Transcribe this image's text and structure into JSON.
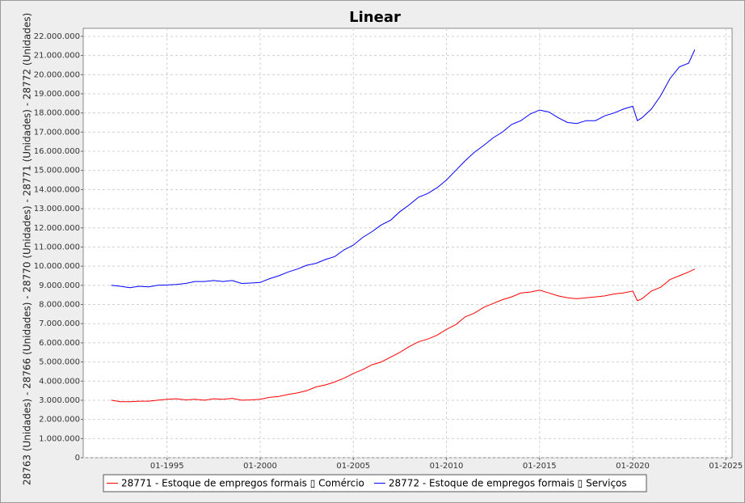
{
  "chart_data": {
    "type": "line",
    "title": "Linear",
    "y_label": "28763 (Unidades) - 28766 (Unidades) - 28770 (Unidades) - 28771 (Unidades) - 28772 (Unidades)",
    "x": [
      "01-1992",
      "07-1992",
      "01-1993",
      "07-1993",
      "01-1994",
      "07-1994",
      "01-1995",
      "07-1995",
      "01-1996",
      "07-1996",
      "01-1997",
      "07-1997",
      "01-1998",
      "07-1998",
      "01-1999",
      "07-1999",
      "01-2000",
      "07-2000",
      "01-2001",
      "07-2001",
      "01-2002",
      "07-2002",
      "01-2003",
      "07-2003",
      "01-2004",
      "07-2004",
      "01-2005",
      "07-2005",
      "01-2006",
      "07-2006",
      "01-2007",
      "07-2007",
      "01-2008",
      "07-2008",
      "01-2009",
      "07-2009",
      "01-2010",
      "07-2010",
      "01-2011",
      "07-2011",
      "01-2012",
      "07-2012",
      "01-2013",
      "07-2013",
      "01-2014",
      "07-2014",
      "01-2015",
      "07-2015",
      "01-2016",
      "07-2016",
      "01-2017",
      "07-2017",
      "01-2018",
      "07-2018",
      "01-2019",
      "07-2019",
      "01-2020",
      "04-2020",
      "07-2020",
      "01-2021",
      "07-2021",
      "01-2022",
      "07-2022",
      "01-2023",
      "05-2023"
    ],
    "series": [
      {
        "name": "28771 - Estoque de empregos formais ▯ Comércio",
        "color": "#ff0000",
        "values": [
          3000000,
          2920000,
          2920000,
          2950000,
          2950000,
          3000000,
          3050000,
          3080000,
          3020000,
          3050000,
          3000000,
          3080000,
          3050000,
          3100000,
          3000000,
          3020000,
          3050000,
          3150000,
          3200000,
          3300000,
          3380000,
          3500000,
          3700000,
          3800000,
          3950000,
          4150000,
          4400000,
          4600000,
          4850000,
          5000000,
          5250000,
          5500000,
          5800000,
          6050000,
          6200000,
          6400000,
          6700000,
          6950000,
          7350000,
          7550000,
          7850000,
          8050000,
          8250000,
          8400000,
          8600000,
          8650000,
          8750000,
          8600000,
          8450000,
          8350000,
          8300000,
          8350000,
          8400000,
          8450000,
          8550000,
          8600000,
          8700000,
          8200000,
          8300000,
          8700000,
          8900000,
          9300000,
          9500000,
          9700000,
          9850000
        ]
      },
      {
        "name": "28772 - Estoque de empregos formais ▯ Serviços",
        "color": "#0000ff",
        "values": [
          9000000,
          8950000,
          8880000,
          8950000,
          8920000,
          9000000,
          9020000,
          9050000,
          9100000,
          9200000,
          9200000,
          9250000,
          9200000,
          9250000,
          9100000,
          9120000,
          9150000,
          9350000,
          9500000,
          9700000,
          9850000,
          10050000,
          10150000,
          10350000,
          10500000,
          10850000,
          11100000,
          11500000,
          11800000,
          12150000,
          12400000,
          12850000,
          13200000,
          13600000,
          13800000,
          14100000,
          14500000,
          15000000,
          15500000,
          15950000,
          16300000,
          16700000,
          17000000,
          17400000,
          17600000,
          17950000,
          18150000,
          18050000,
          17750000,
          17500000,
          17450000,
          17600000,
          17600000,
          17850000,
          18000000,
          18200000,
          18350000,
          17600000,
          17750000,
          18200000,
          18900000,
          19800000,
          20400000,
          20600000,
          21300000
        ]
      }
    ],
    "xlim": [
      "07-1990",
      "05-2025"
    ],
    "xticks": [
      "01-1995",
      "01-2000",
      "01-2005",
      "01-2010",
      "01-2015",
      "01-2020",
      "01-2025"
    ],
    "ylim": [
      0,
      22420000
    ],
    "yticks": [
      0,
      {
        "value": 1000000,
        "label": "1.000.000"
      },
      {
        "value": 2000000,
        "label": "2.000.000"
      },
      {
        "value": 3000000,
        "label": "3.000.000"
      },
      {
        "value": 4000000,
        "label": "4.000.000"
      },
      {
        "value": 5000000,
        "label": "5.000.000"
      },
      {
        "value": 6000000,
        "label": "6.000.000"
      },
      {
        "value": 7000000,
        "label": "7.000.000"
      },
      {
        "value": 8000000,
        "label": "8.000.000"
      },
      {
        "value": 9000000,
        "label": "9.000.000"
      },
      {
        "value": 10000000,
        "label": "10.000.000"
      },
      {
        "value": 11000000,
        "label": "11.000.000"
      },
      {
        "value": 12000000,
        "label": "12.000.000"
      },
      {
        "value": 13000000,
        "label": "13.000.000"
      },
      {
        "value": 14000000,
        "label": "14.000.000"
      },
      {
        "value": 15000000,
        "label": "15.000.000"
      },
      {
        "value": 16000000,
        "label": "16.000.000"
      },
      {
        "value": 17000000,
        "label": "17.000.000"
      },
      {
        "value": 18000000,
        "label": "18.000.000"
      },
      {
        "value": 19000000,
        "label": "19.000.000"
      },
      {
        "value": 20000000,
        "label": "20.000.000"
      },
      {
        "value": 21000000,
        "label": "21.000.000"
      },
      {
        "value": 22000000,
        "label": "22.000.000"
      }
    ],
    "grid": true
  }
}
